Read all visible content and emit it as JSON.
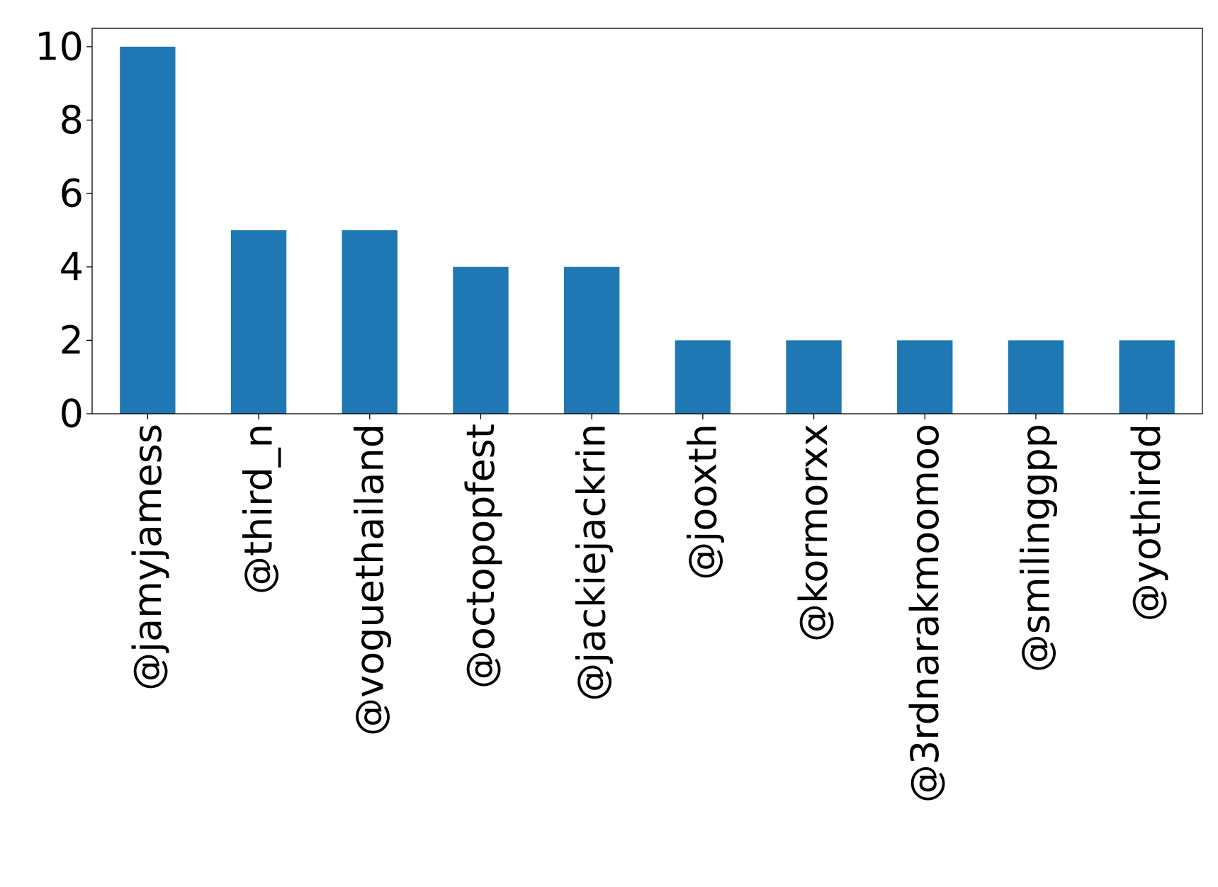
{
  "chart_data": {
    "type": "bar",
    "categories": [
      "@jamyjamess",
      "@third_n",
      "@voguethailand",
      "@octopopfest",
      "@jackiejackrin",
      "@jooxth",
      "@kormorxx",
      "@3rdnarakmoomoo",
      "@smilinggpp",
      "@yothirdd"
    ],
    "values": [
      10,
      5,
      5,
      4,
      4,
      2,
      2,
      2,
      2,
      2
    ],
    "title": "",
    "xlabel": "",
    "ylabel": "",
    "ylim": [
      0,
      10.5
    ],
    "yticks": [
      0,
      2,
      4,
      6,
      8,
      10
    ],
    "ytick_labels": [
      "0",
      "2",
      "4",
      "6",
      "8",
      "10"
    ],
    "bar_color": "#1f77b4",
    "grid": false,
    "legend": "none"
  }
}
